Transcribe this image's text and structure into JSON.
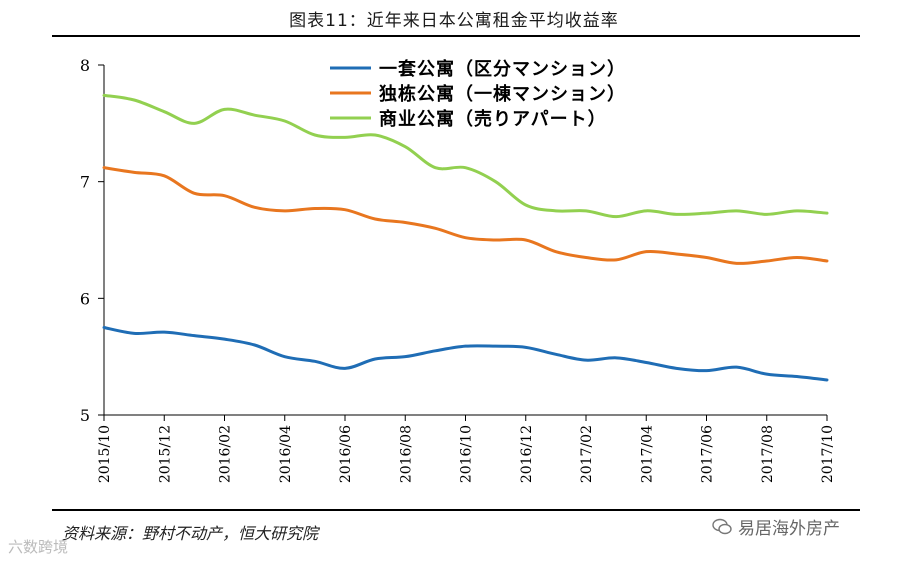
{
  "chart_data": {
    "type": "line",
    "title": "图表11：近年来日本公寓租金平均收益率",
    "xlabel": "",
    "ylabel": "",
    "ylim": [
      5,
      8
    ],
    "yticks": [
      5,
      6,
      7,
      8
    ],
    "x": [
      "2015/10",
      "2015/11",
      "2015/12",
      "2016/01",
      "2016/02",
      "2016/03",
      "2016/04",
      "2016/05",
      "2016/06",
      "2016/07",
      "2016/08",
      "2016/09",
      "2016/10",
      "2016/11",
      "2016/12",
      "2017/01",
      "2017/02",
      "2017/03",
      "2017/04",
      "2017/05",
      "2017/06",
      "2017/07",
      "2017/08",
      "2017/09",
      "2017/10"
    ],
    "tick_labels": [
      "2015/10",
      "2015/12",
      "2016/02",
      "2016/04",
      "2016/06",
      "2016/08",
      "2016/10",
      "2016/12",
      "2017/02",
      "2017/04",
      "2017/06",
      "2017/08",
      "2017/10"
    ],
    "legend_position": "top-right",
    "series": [
      {
        "name": "一套公寓（区分マンション）",
        "color": "#1f6db5",
        "values": [
          5.75,
          5.7,
          5.71,
          5.68,
          5.65,
          5.6,
          5.5,
          5.46,
          5.4,
          5.48,
          5.5,
          5.55,
          5.59,
          5.59,
          5.58,
          5.52,
          5.47,
          5.49,
          5.45,
          5.4,
          5.38,
          5.41,
          5.35,
          5.33,
          5.3
        ]
      },
      {
        "name": "独栋公寓（一棟マンション）",
        "color": "#e8761f",
        "values": [
          7.12,
          7.08,
          7.05,
          6.9,
          6.88,
          6.78,
          6.75,
          6.77,
          6.76,
          6.68,
          6.65,
          6.6,
          6.52,
          6.5,
          6.5,
          6.4,
          6.35,
          6.33,
          6.4,
          6.38,
          6.35,
          6.3,
          6.32,
          6.35,
          6.32
        ]
      },
      {
        "name": "商业公寓（売りアパート）",
        "color": "#92d050",
        "values": [
          7.74,
          7.7,
          7.6,
          7.5,
          7.62,
          7.57,
          7.52,
          7.4,
          7.38,
          7.4,
          7.3,
          7.12,
          7.12,
          7.0,
          6.8,
          6.75,
          6.75,
          6.7,
          6.75,
          6.72,
          6.73,
          6.75,
          6.72,
          6.75,
          6.73
        ]
      }
    ]
  },
  "source": "资料来源：野村不动产，恒大研究院",
  "watermark_right": "易居海外房产",
  "watermark_left": "六数跨境"
}
